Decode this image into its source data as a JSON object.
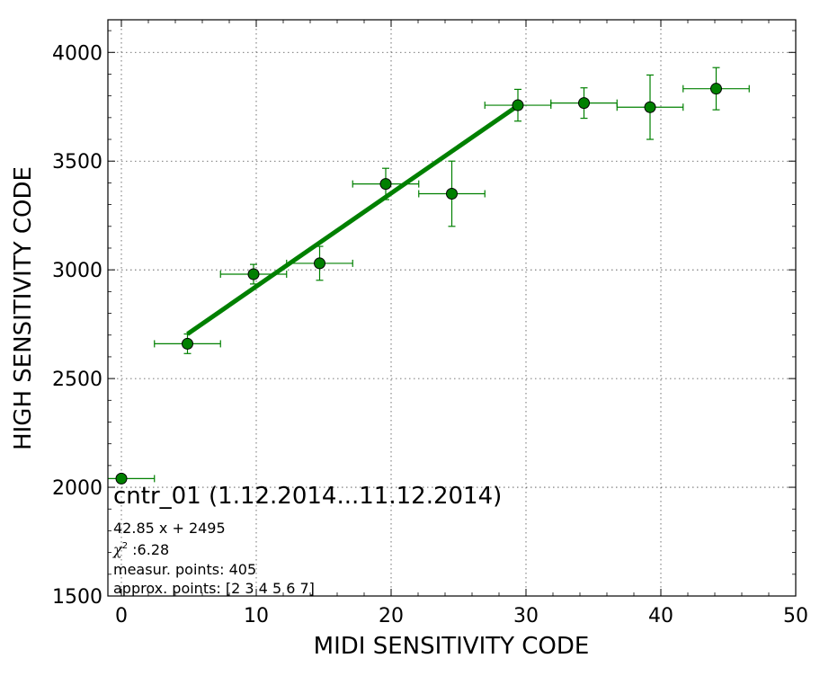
{
  "chart_data": {
    "type": "scatter",
    "xlabel": "MIDI SENSITIVITY CODE",
    "ylabel": "HIGH SENSITIVITY CODE",
    "xlim": [
      -1,
      50
    ],
    "ylim": [
      1500,
      4150
    ],
    "x_ticks": [
      0,
      10,
      20,
      30,
      40,
      50
    ],
    "y_ticks": [
      1500,
      2000,
      2500,
      3000,
      3500,
      4000
    ],
    "grid": true,
    "marker_color": "#008000",
    "line_color": "#008000",
    "points": [
      {
        "x": 0.0,
        "y": 2040,
        "xerr": 2.45,
        "yerr": 10
      },
      {
        "x": 4.9,
        "y": 2660,
        "xerr": 2.45,
        "yerr": 45
      },
      {
        "x": 9.8,
        "y": 2980,
        "xerr": 2.45,
        "yerr": 45
      },
      {
        "x": 14.7,
        "y": 3030,
        "xerr": 2.45,
        "yerr": 78
      },
      {
        "x": 19.6,
        "y": 3395,
        "xerr": 2.45,
        "yerr": 72
      },
      {
        "x": 24.5,
        "y": 3350,
        "xerr": 2.45,
        "yerr": 150
      },
      {
        "x": 29.4,
        "y": 3757,
        "xerr": 2.45,
        "yerr": 73
      },
      {
        "x": 34.3,
        "y": 3767,
        "xerr": 2.45,
        "yerr": 70
      },
      {
        "x": 39.2,
        "y": 3748,
        "xerr": 2.45,
        "yerr": 148
      },
      {
        "x": 44.1,
        "y": 3833,
        "xerr": 2.45,
        "yerr": 97
      }
    ],
    "fit_line": {
      "x": [
        4.9,
        29.4
      ],
      "slope": 42.85,
      "intercept": 2495
    },
    "annotation": {
      "title": "cntr_01 (1.12.2014...11.12.2014)",
      "equation": "42.85 x + 2495",
      "chi2_symbol": "χ",
      "chi2_exp": "2",
      "chi2_value": " :6.28",
      "measur_points": "measur. points: 405",
      "approx_points": "approx. points: [2 3 4 5 6 7]"
    }
  }
}
